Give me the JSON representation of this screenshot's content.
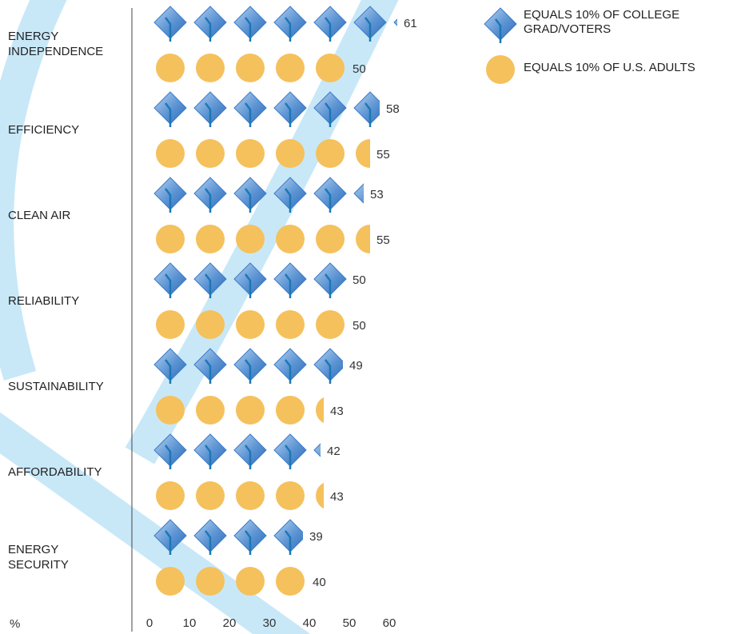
{
  "chart_data": {
    "type": "pictogram",
    "categories": [
      "ENERGY INDEPENDENCE",
      "EFFICIENCY",
      "CLEAN AIR",
      "RELIABILITY",
      "SUSTAINABILITY",
      "AFFORDABILITY",
      "ENERGY SECURITY"
    ],
    "series": [
      {
        "name": "EQUALS 10% OF COLLEGE GRAD/VOTERS",
        "color": "#3d7cc9",
        "icon": "cap",
        "values": [
          61,
          58,
          53,
          50,
          49,
          42,
          39
        ]
      },
      {
        "name": "EQUALS 10% OF U.S. ADULTS",
        "color": "#f5c15c",
        "icon": "circle",
        "values": [
          50,
          55,
          55,
          50,
          43,
          43,
          40
        ]
      }
    ],
    "xlabel": "%",
    "xlim": [
      0,
      60
    ],
    "xticks": [
      0,
      10,
      20,
      30,
      40,
      50,
      60
    ]
  }
}
